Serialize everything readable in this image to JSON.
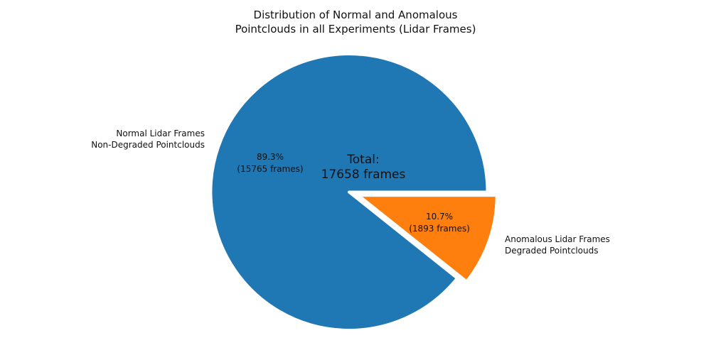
{
  "title": "Distribution of Normal and Anomalous\nPointclouds in all Experiments (Lidar Frames)",
  "chart_data": {
    "type": "pie",
    "title": "Distribution of Normal and Anomalous Pointclouds in all Experiments (Lidar Frames)",
    "total_annotation": "Total:\n17658 frames",
    "total_frames": 17658,
    "startangle": 0,
    "counterclockwise": true,
    "edge_color": "#ffffff",
    "background": "#ffffff",
    "text_color": "#111111",
    "slices": [
      {
        "label": "Normal Lidar Frames\nNon-Degraded Pointclouds",
        "value": 15765,
        "pct": 89.3,
        "pct_label": "89.3%\n(15765 frames)",
        "color": "#1f77b4",
        "explode": 0
      },
      {
        "label": "Anomalous Lidar Frames\nDegraded Pointclouds",
        "value": 1893,
        "pct": 10.7,
        "pct_label": "10.7%\n(1893 frames)",
        "color": "#ff7f0e",
        "explode": 0.072
      }
    ]
  }
}
